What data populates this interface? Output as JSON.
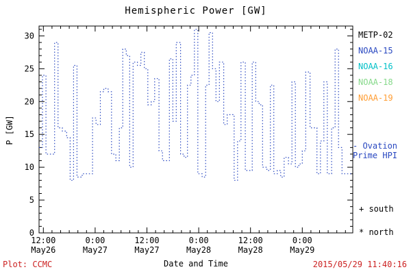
{
  "title": "Hemispheric Power [GW]",
  "ylabel": "P [GW]",
  "xlabel": "Date and Time",
  "footer": {
    "left": "Plot: CCMC",
    "right": "2015/05/29 11:40:16"
  },
  "colors": {
    "line_blue": "#2847c0",
    "stamp_red": "#cc2222",
    "axis_black": "#000000"
  },
  "legend": [
    {
      "label": "METP-02",
      "color": "#000000"
    },
    {
      "label": "NOAA-15",
      "color": "#2847c0"
    },
    {
      "label": "NOAA-16",
      "color": "#00c0c8"
    },
    {
      "label": "NOAA-18",
      "color": "#86d98a"
    },
    {
      "label": "NOAA-19",
      "color": "#ff9d33"
    }
  ],
  "annotations": {
    "ovation_line1": "- Ovation",
    "ovation_line2": "Prime HPI",
    "south": "+ south",
    "north": "* north"
  },
  "chart_data": {
    "type": "line",
    "step": true,
    "line_style": "dotted",
    "line_color": "#2847c0",
    "title": "Hemispheric Power [GW]",
    "xlabel": "Date and Time",
    "ylabel": "P [GW]",
    "grid": false,
    "legend_position": "right",
    "ylim": [
      0,
      31.5
    ],
    "y_ticks": [
      0,
      5,
      10,
      15,
      20,
      25,
      30
    ],
    "xlim_hours_from_may26_00": [
      11,
      83.7
    ],
    "x_ticks": [
      {
        "hour": 12,
        "time": "12:00",
        "date": "May26"
      },
      {
        "hour": 24,
        "time": "0:00",
        "date": "May27"
      },
      {
        "hour": 36,
        "time": "12:00",
        "date": "May27"
      },
      {
        "hour": 48,
        "time": "0:00",
        "date": "May28"
      },
      {
        "hour": 60,
        "time": "12:00",
        "date": "May28"
      },
      {
        "hour": 72,
        "time": "0:00",
        "date": "May29"
      }
    ],
    "series_name": "Ovation Prime HPI",
    "points_hour_gw": [
      [
        11.0,
        13
      ],
      [
        11.8,
        24
      ],
      [
        12.6,
        12
      ],
      [
        13.8,
        12
      ],
      [
        14.6,
        29
      ],
      [
        15.4,
        16
      ],
      [
        16.4,
        15.5
      ],
      [
        17.4,
        14.5
      ],
      [
        18.2,
        8
      ],
      [
        19.0,
        25.5
      ],
      [
        19.8,
        8.5
      ],
      [
        21.0,
        9
      ],
      [
        22.4,
        9
      ],
      [
        23.4,
        17.5
      ],
      [
        24.2,
        16.5
      ],
      [
        25.2,
        21.5
      ],
      [
        26.0,
        22
      ],
      [
        27.0,
        21.5
      ],
      [
        27.8,
        12
      ],
      [
        28.8,
        11
      ],
      [
        29.6,
        16
      ],
      [
        30.4,
        28
      ],
      [
        31.2,
        27
      ],
      [
        32.0,
        10
      ],
      [
        32.8,
        26
      ],
      [
        33.8,
        25.5
      ],
      [
        34.6,
        27.5
      ],
      [
        35.4,
        25
      ],
      [
        36.2,
        19.5
      ],
      [
        37.0,
        20
      ],
      [
        37.8,
        23.5
      ],
      [
        38.8,
        12.5
      ],
      [
        39.6,
        11
      ],
      [
        40.4,
        11
      ],
      [
        41.2,
        26.5
      ],
      [
        42.0,
        17
      ],
      [
        42.8,
        29
      ],
      [
        43.8,
        12
      ],
      [
        44.6,
        11.5
      ],
      [
        45.4,
        22.5
      ],
      [
        46.2,
        24
      ],
      [
        47.0,
        31
      ],
      [
        47.8,
        9
      ],
      [
        48.8,
        8.5
      ],
      [
        49.6,
        22.5
      ],
      [
        50.4,
        30.5
      ],
      [
        51.2,
        25
      ],
      [
        52.0,
        20
      ],
      [
        52.8,
        26
      ],
      [
        53.8,
        16.5
      ],
      [
        54.6,
        18
      ],
      [
        55.4,
        18
      ],
      [
        56.2,
        8
      ],
      [
        57.0,
        14
      ],
      [
        57.8,
        26
      ],
      [
        58.8,
        9.5
      ],
      [
        59.6,
        9.5
      ],
      [
        60.4,
        26
      ],
      [
        61.2,
        20
      ],
      [
        62.0,
        19.5
      ],
      [
        62.8,
        10
      ],
      [
        63.8,
        9.5
      ],
      [
        64.6,
        22.5
      ],
      [
        65.4,
        9
      ],
      [
        66.2,
        9.5
      ],
      [
        67.0,
        8.5
      ],
      [
        67.8,
        11.5
      ],
      [
        68.8,
        10.5
      ],
      [
        69.6,
        23
      ],
      [
        70.4,
        10
      ],
      [
        71.2,
        10.5
      ],
      [
        72.0,
        12.5
      ],
      [
        72.8,
        24.5
      ],
      [
        73.8,
        16
      ],
      [
        74.6,
        16
      ],
      [
        75.4,
        9
      ],
      [
        76.2,
        14
      ],
      [
        77.0,
        23
      ],
      [
        77.8,
        9
      ],
      [
        78.8,
        16
      ],
      [
        79.6,
        28
      ],
      [
        80.4,
        13
      ],
      [
        81.2,
        9
      ],
      [
        82.4,
        9
      ]
    ]
  }
}
